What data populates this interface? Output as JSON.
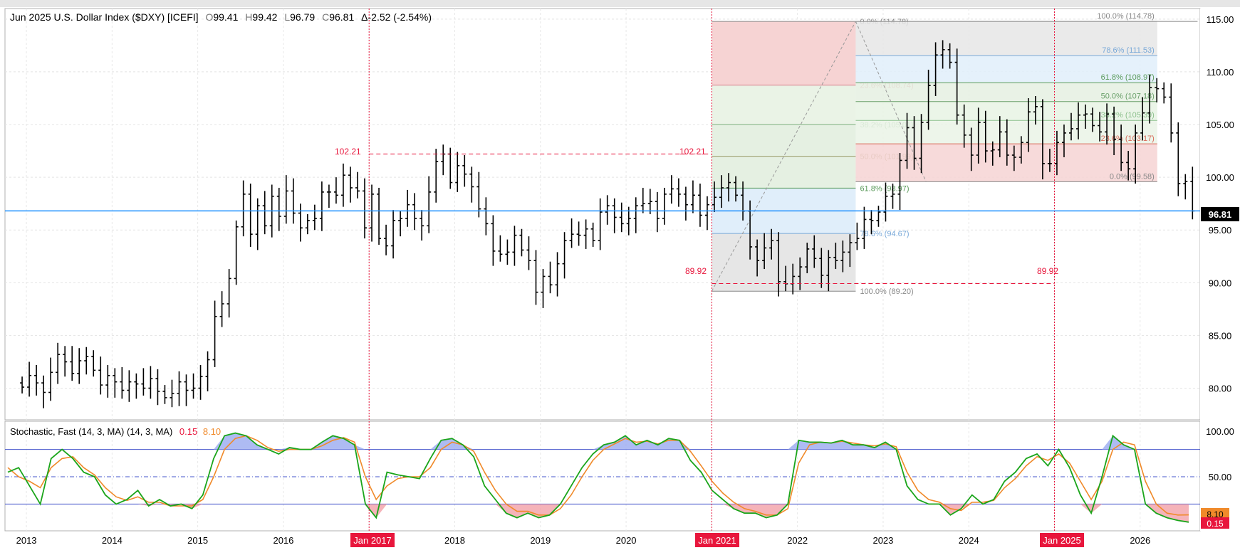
{
  "header": {
    "symbol": "Jun 2025  U.S. Dollar Index ($DXY) [ICEFI]",
    "open_label": "O",
    "open": "99.41",
    "high_label": "H",
    "high": "99.42",
    "low_label": "L",
    "low": "96.79",
    "close_label": "C",
    "close": "96.81",
    "change": "Δ-2.52 (-2.54%)"
  },
  "price_axis": {
    "ticks": [
      "115.00",
      "110.00",
      "105.00",
      "100.00",
      "95.00",
      "90.00",
      "85.00",
      "80.00"
    ],
    "last_price_tag": "96.81"
  },
  "time_axis": {
    "years": [
      "2013",
      "2014",
      "2015",
      "2016",
      "2017",
      "2018",
      "2019",
      "2020",
      "2021",
      "2022",
      "2023",
      "2024",
      "2025",
      "2026"
    ],
    "highlight_labels": [
      "Jan 2017",
      "Jan 2021",
      "Jan 2025"
    ]
  },
  "annotations": {
    "level_102_left": "102.21",
    "level_102_right": "102.21",
    "level_89_left": "89.92",
    "level_89_right": "89.92",
    "fib_left": [
      {
        "text": "0.0% (114.78)",
        "color": "#888888"
      },
      {
        "text": "23.6% (108.74)",
        "color": "#d97a8a"
      },
      {
        "text": "38.2% (105.01)",
        "color": "#7fb07f"
      },
      {
        "text": "50.0% (101.99)",
        "color": "#999966"
      },
      {
        "text": "61.8% (98.97)",
        "color": "#5a9a5a"
      },
      {
        "text": "78.6% (94.67)",
        "color": "#78a8d8"
      },
      {
        "text": "100.0% (89.20)",
        "color": "#888888"
      }
    ],
    "fib_right": [
      {
        "text": "100.0% (114.78)",
        "color": "#888888"
      },
      {
        "text": "78.6% (111.53)",
        "color": "#78a8d8"
      },
      {
        "text": "61.8% (108.97)",
        "color": "#5a9a5a"
      },
      {
        "text": "50.0% (107.18)",
        "color": "#6aa06a"
      },
      {
        "text": "38.2% (105.39)",
        "color": "#8cc08c"
      },
      {
        "text": "23.6% (103.17)",
        "color": "#d96a5a"
      },
      {
        "text": "0.0% (99.58)",
        "color": "#888888"
      }
    ]
  },
  "stochastic": {
    "title": "Stochastic, Fast (14, 3, MA)  (14, 3, MA)",
    "k_value": "0.15",
    "d_value": "8.10",
    "axis_ticks": [
      "100.00",
      "50.00"
    ]
  },
  "colors": {
    "bars": "#000000",
    "last_price_line": "#1e90ff",
    "red_marker": "#e8163c",
    "stoch_k": "#1aa51a",
    "stoch_d": "#f08a2a",
    "overbought_fill": "#9aaaf0",
    "oversold_fill": "#f2a0a8"
  },
  "chart_data": {
    "type": "ohlc",
    "period": "monthly",
    "x_start": "2012.95",
    "x_step_years": 0.0833,
    "ylim": [
      77,
      116
    ],
    "last_price": 96.81,
    "fib_levels_left": [
      114.78,
      108.74,
      105.01,
      101.99,
      98.97,
      94.67,
      89.2
    ],
    "fib_levels_right": [
      114.78,
      111.53,
      108.97,
      107.18,
      105.39,
      103.17,
      99.58
    ],
    "closes": [
      80.1,
      81.2,
      80.5,
      79.6,
      81.5,
      83.2,
      82.5,
      81.4,
      82.6,
      83.0,
      81.7,
      80.3,
      81.2,
      80.6,
      79.8,
      80.6,
      80.4,
      80.0,
      80.9,
      79.7,
      79.1,
      79.5,
      80.6,
      79.8,
      80.0,
      81.1,
      82.7,
      86.8,
      88.0,
      90.4,
      95.3,
      98.4,
      94.6,
      97.3,
      95.4,
      98.2,
      96.3,
      98.7,
      96.6,
      95.2,
      95.9,
      96.1,
      98.6,
      98.6,
      98.3,
      100.2,
      99.0,
      98.7,
      95.2,
      98.4,
      94.2,
      93.5,
      95.9,
      96.1,
      97.4,
      96.1,
      95.4,
      98.6,
      101.5,
      102.2,
      99.5,
      101.1,
      100.3,
      99.1,
      97.0,
      95.6,
      93.0,
      92.7,
      92.9,
      94.5,
      93.1,
      92.1,
      89.1,
      90.6,
      89.8,
      91.8,
      94.0,
      94.6,
      94.5,
      95.1,
      94.0,
      96.7,
      97.3,
      96.2,
      95.6,
      96.1,
      97.3,
      97.5,
      97.7,
      96.1,
      98.4,
      98.9,
      98.4,
      97.4,
      98.3,
      96.4,
      97.4,
      98.1,
      99.0,
      99.5,
      98.3,
      96.8,
      93.4,
      92.1,
      93.3,
      94.0,
      90.1,
      89.9,
      90.6,
      91.5,
      93.2,
      92.3,
      90.7,
      92.4,
      92.1,
      92.9,
      93.8,
      94.2,
      96.0,
      95.9,
      96.7,
      98.2,
      98.4,
      101.6,
      104.7,
      101.8,
      105.2,
      108.7,
      111.6,
      112.1,
      110.9,
      105.9,
      104.0,
      102.1,
      105.2,
      102.5,
      102.6,
      104.3,
      102.1,
      101.9,
      103.3,
      106.2,
      106.7,
      101.3,
      101.3,
      103.3,
      104.2,
      104.6,
      105.9,
      106.0,
      104.9,
      104.3,
      106.0,
      103.6,
      101.4,
      100.8,
      104.2,
      106.1,
      108.5,
      108.4,
      107.6,
      104.2,
      99.4,
      99.6,
      96.81
    ],
    "stoch_k": [
      55,
      60,
      40,
      20,
      70,
      80,
      70,
      55,
      50,
      30,
      20,
      25,
      35,
      18,
      25,
      18,
      20,
      15,
      30,
      70,
      95,
      98,
      95,
      85,
      80,
      75,
      82,
      80,
      80,
      88,
      95,
      92,
      85,
      20,
      5,
      55,
      52,
      50,
      48,
      70,
      90,
      92,
      85,
      72,
      40,
      25,
      10,
      5,
      10,
      5,
      8,
      20,
      40,
      60,
      75,
      85,
      88,
      95,
      85,
      90,
      85,
      92,
      90,
      68,
      55,
      35,
      25,
      15,
      10,
      10,
      5,
      8,
      20,
      90,
      88,
      88,
      87,
      90,
      85,
      85,
      82,
      88,
      80,
      40,
      25,
      20,
      20,
      8,
      15,
      30,
      20,
      25,
      45,
      55,
      70,
      75,
      62,
      80,
      60,
      30,
      10,
      50,
      95,
      85,
      80,
      20,
      10,
      5,
      2,
      0.15
    ],
    "stoch_d": [
      60,
      50,
      45,
      38,
      60,
      70,
      72,
      60,
      52,
      38,
      28,
      24,
      28,
      22,
      22,
      18,
      18,
      18,
      25,
      50,
      80,
      92,
      95,
      90,
      82,
      78,
      80,
      80,
      80,
      84,
      90,
      93,
      88,
      50,
      25,
      40,
      48,
      50,
      50,
      60,
      80,
      88,
      85,
      78,
      55,
      35,
      20,
      12,
      12,
      8,
      8,
      15,
      30,
      50,
      68,
      80,
      86,
      92,
      88,
      89,
      86,
      90,
      90,
      78,
      62,
      45,
      32,
      22,
      15,
      12,
      8,
      8,
      15,
      65,
      85,
      88,
      87,
      89,
      87,
      85,
      84,
      86,
      83,
      55,
      35,
      25,
      22,
      15,
      13,
      22,
      22,
      24,
      38,
      48,
      62,
      72,
      68,
      75,
      65,
      45,
      25,
      45,
      80,
      88,
      85,
      45,
      20,
      10,
      8,
      8.1
    ],
    "overbought": 80,
    "oversold": 20,
    "stoch_ylim": [
      0,
      100
    ]
  }
}
